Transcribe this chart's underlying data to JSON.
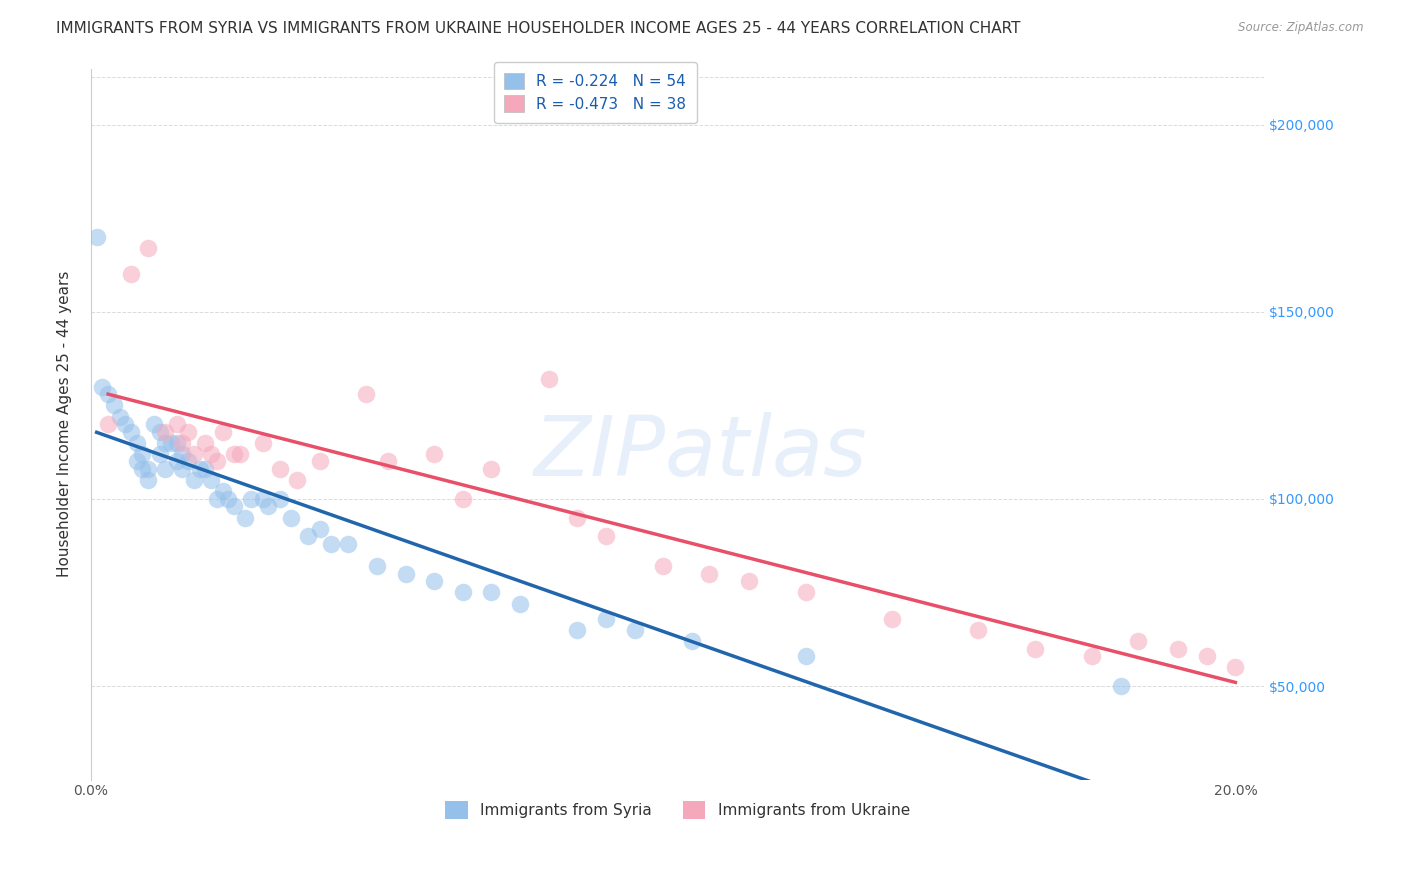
{
  "title": "IMMIGRANTS FROM SYRIA VS IMMIGRANTS FROM UKRAINE HOUSEHOLDER INCOME AGES 25 - 44 YEARS CORRELATION CHART",
  "source": "Source: ZipAtlas.com",
  "ylabel": "Householder Income Ages 25 - 44 years",
  "xlim": [
    0.0,
    0.205
  ],
  "ylim": [
    25000,
    215000
  ],
  "xticks": [
    0.0,
    0.05,
    0.1,
    0.15,
    0.2
  ],
  "xtick_labels_show": [
    "0.0%",
    "",
    "",
    "",
    "20.0%"
  ],
  "yticks": [
    50000,
    100000,
    150000,
    200000
  ],
  "ytick_labels_right": [
    "$50,000",
    "$100,000",
    "$150,000",
    "$200,000"
  ],
  "syria_color": "#94C0EA",
  "ukraine_color": "#F5A8BC",
  "syria_line_color": "#2166AC",
  "ukraine_line_color": "#E8506A",
  "legend_label_syria": "R = -0.224   N = 54",
  "legend_label_ukraine": "R = -0.473   N = 38",
  "legend_bottom_syria": "Immigrants from Syria",
  "legend_bottom_ukraine": "Immigrants from Ukraine",
  "watermark_text": "ZIPatlas",
  "syria_x": [
    0.001,
    0.002,
    0.003,
    0.004,
    0.005,
    0.006,
    0.007,
    0.008,
    0.008,
    0.009,
    0.009,
    0.01,
    0.01,
    0.011,
    0.012,
    0.012,
    0.013,
    0.013,
    0.014,
    0.015,
    0.015,
    0.016,
    0.016,
    0.017,
    0.018,
    0.019,
    0.02,
    0.021,
    0.022,
    0.023,
    0.024,
    0.025,
    0.027,
    0.028,
    0.03,
    0.031,
    0.033,
    0.035,
    0.038,
    0.04,
    0.042,
    0.045,
    0.05,
    0.055,
    0.06,
    0.065,
    0.07,
    0.075,
    0.085,
    0.09,
    0.095,
    0.105,
    0.125,
    0.18
  ],
  "syria_y": [
    170000,
    130000,
    128000,
    125000,
    122000,
    120000,
    118000,
    115000,
    110000,
    112000,
    108000,
    108000,
    105000,
    120000,
    118000,
    112000,
    115000,
    108000,
    115000,
    115000,
    110000,
    112000,
    108000,
    110000,
    105000,
    108000,
    108000,
    105000,
    100000,
    102000,
    100000,
    98000,
    95000,
    100000,
    100000,
    98000,
    100000,
    95000,
    90000,
    92000,
    88000,
    88000,
    82000,
    80000,
    78000,
    75000,
    75000,
    72000,
    65000,
    68000,
    65000,
    62000,
    58000,
    50000
  ],
  "ukraine_x": [
    0.003,
    0.007,
    0.01,
    0.013,
    0.015,
    0.016,
    0.017,
    0.018,
    0.02,
    0.021,
    0.022,
    0.023,
    0.025,
    0.026,
    0.03,
    0.033,
    0.036,
    0.04,
    0.048,
    0.052,
    0.06,
    0.065,
    0.07,
    0.08,
    0.085,
    0.09,
    0.1,
    0.108,
    0.115,
    0.125,
    0.14,
    0.155,
    0.165,
    0.175,
    0.183,
    0.19,
    0.195,
    0.2
  ],
  "ukraine_y": [
    120000,
    160000,
    167000,
    118000,
    120000,
    115000,
    118000,
    112000,
    115000,
    112000,
    110000,
    118000,
    112000,
    112000,
    115000,
    108000,
    105000,
    110000,
    128000,
    110000,
    112000,
    100000,
    108000,
    132000,
    95000,
    90000,
    82000,
    80000,
    78000,
    75000,
    68000,
    65000,
    60000,
    58000,
    62000,
    60000,
    58000,
    55000
  ],
  "background_color": "#FFFFFF",
  "grid_color": "#CCCCCC",
  "title_fontsize": 11,
  "axis_label_fontsize": 11,
  "tick_fontsize": 10,
  "legend_fontsize": 11,
  "scatter_size": 160,
  "scatter_alpha": 0.55
}
